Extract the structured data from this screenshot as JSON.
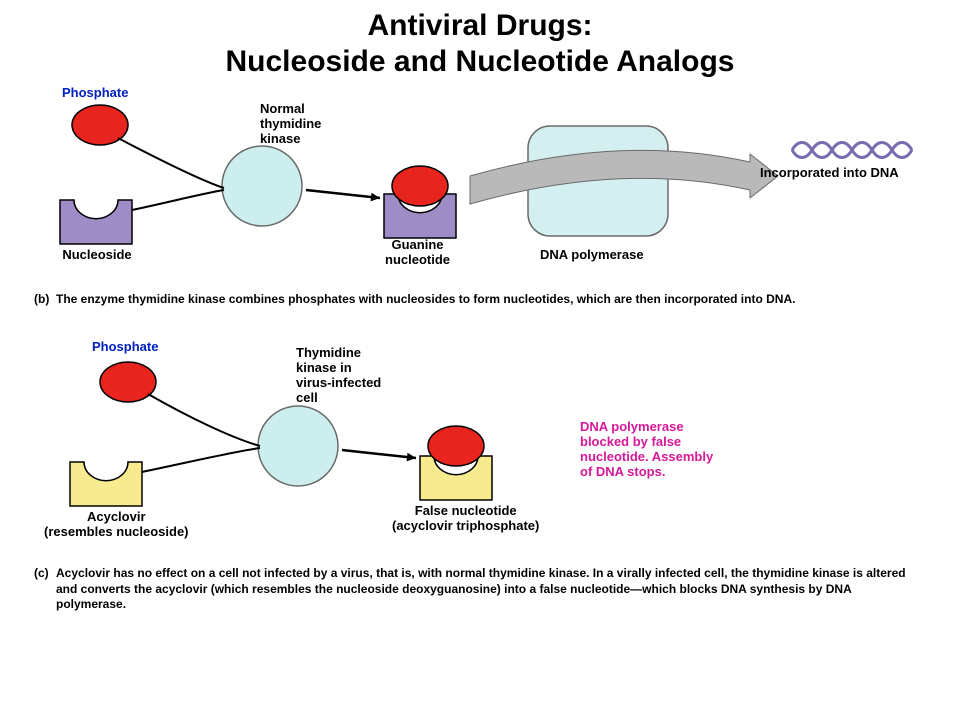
{
  "title": {
    "line1": "Antiviral Drugs:",
    "line2": "Nucleoside and Nucleotide Analogs",
    "fontsize": 30,
    "color": "#000000"
  },
  "colors": {
    "phosphate_fill": "#e8241f",
    "phosphate_stroke": "#000000",
    "nucleoside_fill": "#9e8cc6",
    "nucleoside_stroke": "#000000",
    "kinase_fill": "#cdeeef",
    "kinase_stroke": "#6a6a6a",
    "polymerase_fill": "#d4eff0",
    "polymerase_stroke": "#6a6a6a",
    "acyclovir_fill": "#f7ea8f",
    "acyclovir_stroke": "#000000",
    "arrow_fill": "#b9b9b9",
    "arrow_stroke": "#6a6a6a",
    "line_stroke": "#000000",
    "dna_fill": "#7a6bb0",
    "label_blue": "#0020c0",
    "label_black": "#000000",
    "label_magenta": "#d6189a",
    "caption_black": "#000000"
  },
  "panel_b": {
    "phosphate_label": "Phosphate",
    "nucleoside_label": "Nucleoside",
    "kinase_label": "Normal\nthymidine\nkinase",
    "guanine_label": "Guanine\nnucleotide",
    "polymerase_label": "DNA polymerase",
    "dna_label": "Incorporated into DNA",
    "caption_tag": "(b)",
    "caption_text": "The enzyme thymidine kinase combines phosphates with nucleosides to form nucleotides, which are then incorporated into DNA."
  },
  "panel_c": {
    "phosphate_label": "Phosphate",
    "acyclovir_label": "Acyclovir\n(resembles nucleoside)",
    "kinase_label": "Thymidine\nkinase in\nvirus-infected\ncell",
    "false_label": "False nucleotide\n(acyclovir triphosphate)",
    "blocked_label": "DNA polymerase\nblocked by false\nnucleotide. Assembly\nof DNA stops.",
    "caption_tag": "(c)",
    "caption_text": "Acyclovir has no effect on a cell not infected by a virus, that is, with normal thymidine kinase. In a virally infected cell, the thymidine kinase is altered and converts the acyclovir (which resembles the nucleoside deoxyguanosine) into a false nucleotide—which blocks DNA synthesis by DNA polymerase."
  },
  "geom": {
    "label_fontsize": 13,
    "caption_fontsize": 12,
    "phosphate_rx": 28,
    "phosphate_ry": 20,
    "kinase_r": 40,
    "nucleoside_w": 72,
    "nucleoside_h": 44,
    "notch_r": 22,
    "polymerase_w": 140,
    "polymerase_h": 110,
    "polymerase_rx": 22
  }
}
